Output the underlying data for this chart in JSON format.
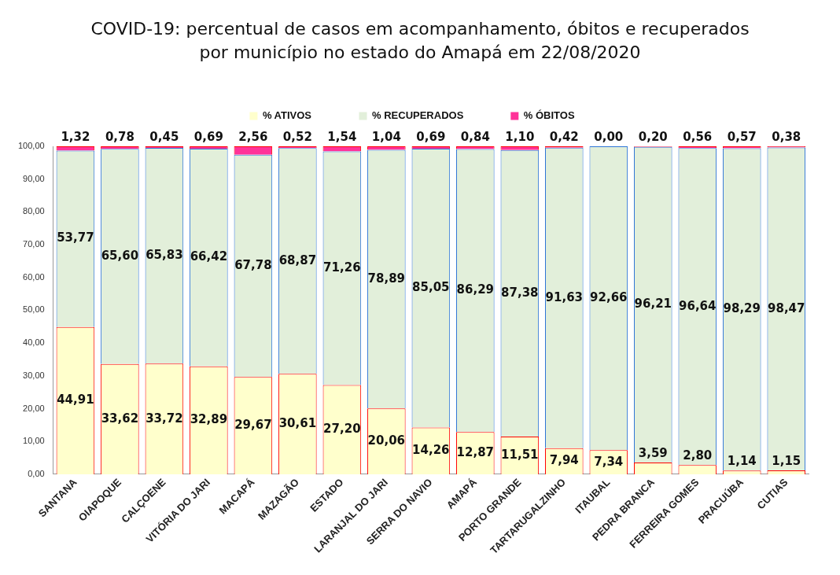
{
  "chart_data": {
    "type": "bar",
    "stacked": true,
    "title": "COVID-19: percentual de casos em acompanhamento, óbitos e recuperados por município no estado do Amapá em 22/08/2020",
    "categories": [
      "SANTANA",
      "OIAPOQUE",
      "CALÇOENE",
      "VITÓRIA DO JARI",
      "MACAPÁ",
      "MAZAGÃO",
      "ESTADO",
      "LARANJAL DO JARI",
      "SERRA DO NAVIO",
      "AMAPÁ",
      "PORTO GRANDE",
      "TARTARUGALZINHO",
      "ITAUBAL",
      "PEDRA BRANCA",
      "FERREIRA GOMES",
      "PRACUÚBA",
      "CUTIAS"
    ],
    "series": [
      {
        "name": "% ATIVOS",
        "color": "#ffffcc",
        "values": [
          44.91,
          33.62,
          33.72,
          32.89,
          29.67,
          30.61,
          27.2,
          20.06,
          14.26,
          12.87,
          11.51,
          7.94,
          7.34,
          3.59,
          2.8,
          1.14,
          1.15
        ],
        "value_labels": [
          "44,91",
          "33,62",
          "33,72",
          "32,89",
          "29,67",
          "30,61",
          "27,20",
          "20,06",
          "14,26",
          "12,87",
          "11,51",
          "7,94",
          "7,34",
          "3,59",
          "2,80",
          "1,14",
          "1,15"
        ]
      },
      {
        "name": "% RECUPERADOS",
        "color": "#e2efda",
        "values": [
          53.77,
          65.6,
          65.83,
          66.42,
          67.78,
          68.87,
          71.26,
          78.89,
          85.05,
          86.29,
          87.38,
          91.63,
          92.66,
          96.21,
          96.64,
          98.29,
          98.47
        ],
        "value_labels": [
          "53,77",
          "65,60",
          "65,83",
          "66,42",
          "67,78",
          "68,87",
          "71,26",
          "78,89",
          "85,05",
          "86,29",
          "87,38",
          "91,63",
          "92,66",
          "96,21",
          "96,64",
          "98,29",
          "98,47"
        ]
      },
      {
        "name": "% ÓBITOS",
        "color": "#ff3399",
        "values": [
          1.32,
          0.78,
          0.45,
          0.69,
          2.56,
          0.52,
          1.54,
          1.04,
          0.69,
          0.84,
          1.1,
          0.42,
          0.0,
          0.2,
          0.56,
          0.57,
          0.38
        ],
        "value_labels": [
          "1,32",
          "0,78",
          "0,45",
          "0,69",
          "2,56",
          "0,52",
          "1,54",
          "1,04",
          "0,69",
          "0,84",
          "1,10",
          "0,42",
          "0,00",
          "0,20",
          "0,56",
          "0,57",
          "0,38"
        ]
      }
    ],
    "ylim": [
      0,
      100
    ],
    "yticks": [
      {
        "value": 0,
        "label": "0,00"
      },
      {
        "value": 10,
        "label": "10,00"
      },
      {
        "value": 20,
        "label": "20,00"
      },
      {
        "value": 30,
        "label": "30,00"
      },
      {
        "value": 40,
        "label": "40,00"
      },
      {
        "value": 50,
        "label": "50,00"
      },
      {
        "value": 60,
        "label": "60,00"
      },
      {
        "value": 70,
        "label": "70,00"
      },
      {
        "value": 80,
        "label": "80,00"
      },
      {
        "value": 90,
        "label": "90,00"
      },
      {
        "value": 100,
        "label": "100,00"
      }
    ],
    "grid": false,
    "legend": "top"
  }
}
